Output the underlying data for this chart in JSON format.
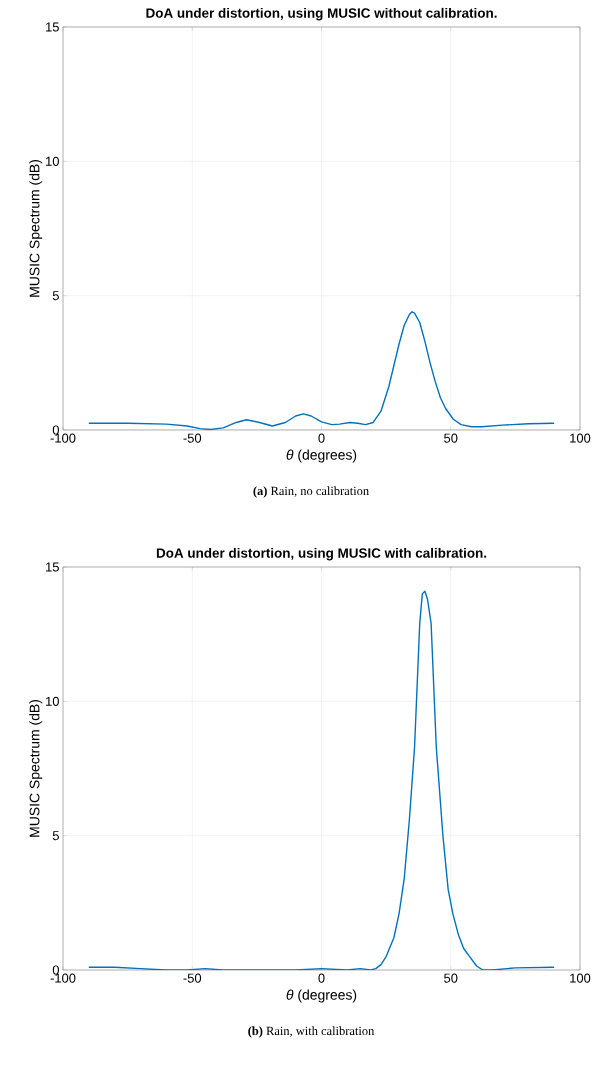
{
  "chart_data": [
    {
      "type": "line",
      "title": "DoA under distortion, using MUSIC without calibration.",
      "xlabel": "*θ* (degrees)",
      "ylabel": "MUSIC Spectrum (dB)",
      "x": [
        -90,
        -75,
        -60,
        -52,
        -47,
        -43,
        -38,
        -33,
        -29,
        -24,
        -19,
        -14,
        -10,
        -7,
        -4,
        0,
        4,
        7,
        11,
        14,
        17,
        20,
        23,
        26,
        28,
        30,
        32,
        34,
        35,
        36,
        38,
        40,
        42,
        44,
        46,
        48,
        51,
        54,
        58,
        62,
        70,
        80,
        90
      ],
      "series": [
        {
          "color": "#0072bd",
          "values": [
            0.25,
            0.25,
            0.22,
            0.15,
            0.05,
            0.02,
            0.08,
            0.28,
            0.38,
            0.28,
            0.15,
            0.28,
            0.52,
            0.6,
            0.52,
            0.3,
            0.2,
            0.22,
            0.28,
            0.25,
            0.2,
            0.28,
            0.7,
            1.6,
            2.4,
            3.2,
            3.9,
            4.3,
            4.4,
            4.35,
            4.0,
            3.3,
            2.5,
            1.8,
            1.2,
            0.8,
            0.4,
            0.2,
            0.12,
            0.12,
            0.18,
            0.23,
            0.25
          ]
        }
      ],
      "xlim": [
        -100,
        100
      ],
      "ylim": [
        0,
        15
      ],
      "xticks": [
        -100,
        -50,
        0,
        50,
        100
      ],
      "yticks": [
        0,
        5,
        10,
        15
      ],
      "grid": true,
      "marker": "none",
      "line_style": "solid",
      "annotations": [
        "**(a)** Rain, no calibration"
      ]
    },
    {
      "type": "line",
      "title": "DoA under distortion, using MUSIC with calibration.",
      "xlabel": "*θ* (degrees)",
      "ylabel": "MUSIC Spectrum (dB)",
      "x": [
        -90,
        -80,
        -70,
        -60,
        -52,
        -45,
        -38,
        -30,
        -20,
        -10,
        0,
        10,
        15,
        19,
        21,
        23,
        25,
        28,
        30,
        32,
        34,
        36,
        38,
        39,
        40,
        41,
        42.4,
        44.4,
        47,
        49,
        50.8,
        53,
        55,
        57.3,
        60,
        62.4,
        66,
        75,
        90
      ],
      "series": [
        {
          "color": "#0072bd",
          "values": [
            0.1,
            0.1,
            0.05,
            0.0,
            0.0,
            0.05,
            0.0,
            0.0,
            0.0,
            0.0,
            0.05,
            0.0,
            0.05,
            0.0,
            0.05,
            0.2,
            0.5,
            1.2,
            2.1,
            3.4,
            5.6,
            8.3,
            12.9,
            14.0,
            14.1,
            13.8,
            12.9,
            8.3,
            4.96,
            3.0,
            2.1,
            1.3,
            0.8,
            0.5,
            0.15,
            0.0,
            0.0,
            0.08,
            0.1
          ]
        }
      ],
      "xlim": [
        -100,
        100
      ],
      "ylim": [
        0,
        15
      ],
      "xticks": [
        -100,
        -50,
        0,
        50,
        100
      ],
      "yticks": [
        0,
        5,
        10,
        15
      ],
      "grid": true,
      "marker": "none",
      "line_style": "solid",
      "annotations": [
        "**(b)** Rain, with calibration"
      ]
    }
  ]
}
